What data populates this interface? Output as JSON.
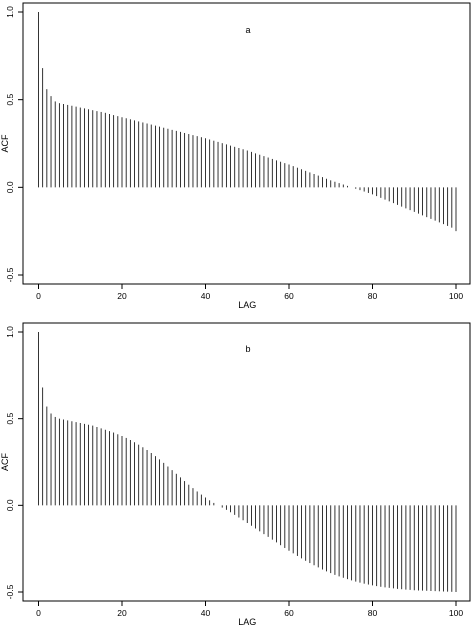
{
  "chart_data": [
    {
      "type": "bar",
      "title": "a",
      "xlabel": "LAG",
      "ylabel": "ACF",
      "xlim": [
        0,
        100
      ],
      "ylim": [
        -0.5,
        1.0
      ],
      "x_ticks": [
        0,
        20,
        40,
        60,
        80,
        100
      ],
      "y_ticks": [
        -0.5,
        0.0,
        0.5,
        1.0
      ],
      "x_tick_labels": [
        "0",
        "20",
        "40",
        "60",
        "80",
        "100"
      ],
      "y_tick_labels": [
        "-0.5",
        "0.0",
        "0.5",
        "1.0"
      ],
      "lags_from": 0,
      "lags_to": 100,
      "values": [
        1.0,
        0.68,
        0.56,
        0.52,
        0.49,
        0.48,
        0.475,
        0.47,
        0.465,
        0.46,
        0.455,
        0.45,
        0.445,
        0.44,
        0.435,
        0.43,
        0.425,
        0.418,
        0.412,
        0.406,
        0.4,
        0.394,
        0.388,
        0.382,
        0.376,
        0.37,
        0.364,
        0.358,
        0.352,
        0.346,
        0.34,
        0.334,
        0.328,
        0.322,
        0.316,
        0.31,
        0.304,
        0.298,
        0.292,
        0.286,
        0.28,
        0.273,
        0.266,
        0.259,
        0.252,
        0.245,
        0.238,
        0.231,
        0.224,
        0.217,
        0.21,
        0.202,
        0.194,
        0.186,
        0.178,
        0.17,
        0.162,
        0.154,
        0.146,
        0.138,
        0.13,
        0.121,
        0.112,
        0.103,
        0.094,
        0.085,
        0.076,
        0.067,
        0.058,
        0.049,
        0.04,
        0.032,
        0.024,
        0.016,
        0.008,
        0.0,
        -0.008,
        -0.016,
        -0.024,
        -0.032,
        -0.04,
        -0.05,
        -0.06,
        -0.07,
        -0.08,
        -0.09,
        -0.1,
        -0.11,
        -0.12,
        -0.13,
        -0.14,
        -0.15,
        -0.16,
        -0.17,
        -0.18,
        -0.19,
        -0.2,
        -0.21,
        -0.22,
        -0.23,
        -0.25
      ],
      "grid": false
    },
    {
      "type": "bar",
      "title": "b",
      "xlabel": "LAG",
      "ylabel": "ACF",
      "xlim": [
        0,
        100
      ],
      "ylim": [
        -0.5,
        1.0
      ],
      "x_ticks": [
        0,
        20,
        40,
        60,
        80,
        100
      ],
      "y_ticks": [
        -0.5,
        0.0,
        0.5,
        1.0
      ],
      "x_tick_labels": [
        "0",
        "20",
        "40",
        "60",
        "80",
        "100"
      ],
      "y_tick_labels": [
        "-0.5",
        "0.0",
        "0.5",
        "1.0"
      ],
      "lags_from": 0,
      "lags_to": 100,
      "values": [
        1.0,
        0.68,
        0.57,
        0.53,
        0.51,
        0.5,
        0.495,
        0.49,
        0.485,
        0.48,
        0.475,
        0.47,
        0.465,
        0.46,
        0.452,
        0.444,
        0.436,
        0.428,
        0.42,
        0.41,
        0.4,
        0.389,
        0.377,
        0.364,
        0.35,
        0.335,
        0.319,
        0.302,
        0.284,
        0.265,
        0.245,
        0.224,
        0.203,
        0.182,
        0.161,
        0.14,
        0.119,
        0.099,
        0.08,
        0.062,
        0.045,
        0.029,
        0.014,
        0.0,
        -0.013,
        -0.026,
        -0.04,
        -0.055,
        -0.07,
        -0.086,
        -0.102,
        -0.118,
        -0.134,
        -0.15,
        -0.166,
        -0.182,
        -0.198,
        -0.214,
        -0.23,
        -0.246,
        -0.262,
        -0.277,
        -0.292,
        -0.306,
        -0.32,
        -0.333,
        -0.346,
        -0.358,
        -0.37,
        -0.381,
        -0.391,
        -0.401,
        -0.41,
        -0.418,
        -0.426,
        -0.433,
        -0.44,
        -0.446,
        -0.452,
        -0.457,
        -0.462,
        -0.466,
        -0.47,
        -0.473,
        -0.476,
        -0.479,
        -0.482,
        -0.484,
        -0.486,
        -0.488,
        -0.49,
        -0.491,
        -0.492,
        -0.493,
        -0.494,
        -0.495,
        -0.496,
        -0.497,
        -0.498,
        -0.499,
        -0.5
      ],
      "grid": false
    }
  ]
}
